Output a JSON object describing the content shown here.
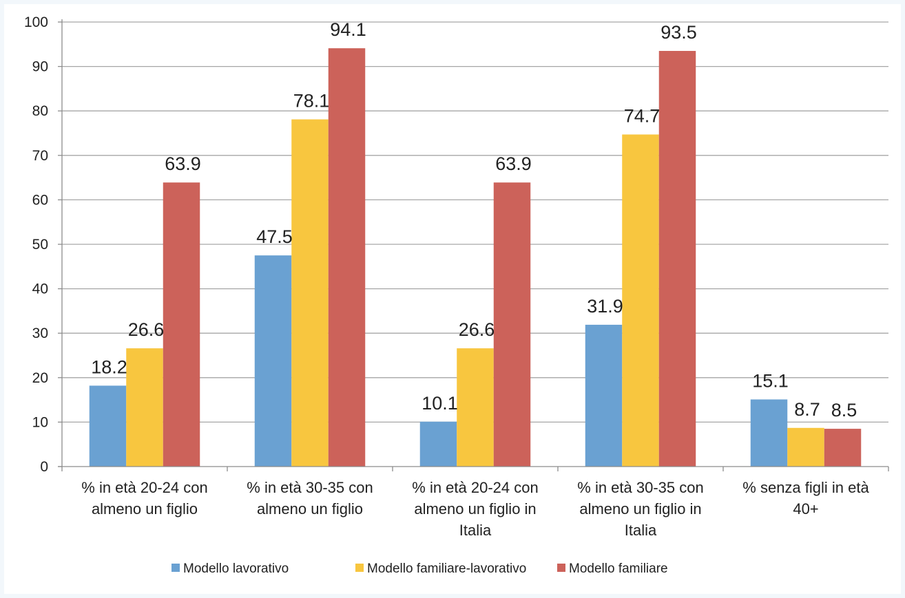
{
  "chart_data": {
    "type": "bar",
    "categories": [
      [
        "% in età 20-24 con",
        "almeno un figlio"
      ],
      [
        "% in età 30-35 con",
        "almeno un figlio"
      ],
      [
        "% in età 20-24 con",
        "almeno un figlio in",
        "Italia"
      ],
      [
        "% in età 30-35 con",
        "almeno un figlio in",
        "Italia"
      ],
      [
        "% senza figli in età",
        "40+"
      ]
    ],
    "series": [
      {
        "name": "Modello lavorativo",
        "color": "#6aa1d2",
        "values": [
          18.2,
          47.5,
          10.1,
          31.9,
          15.1
        ]
      },
      {
        "name": "Modello familiare-lavorativo",
        "color": "#f8c63f",
        "values": [
          26.6,
          78.1,
          26.6,
          74.7,
          8.7
        ]
      },
      {
        "name": "Modello familiare",
        "color": "#cc625a",
        "values": [
          63.9,
          94.1,
          63.9,
          93.5,
          8.5
        ]
      }
    ],
    "ylim": [
      0,
      100
    ],
    "yticks": [
      0,
      10,
      20,
      30,
      40,
      50,
      60,
      70,
      80,
      90,
      100
    ],
    "grid": true,
    "legend_position": "bottom",
    "title": "",
    "xlabel": "",
    "ylabel": ""
  }
}
